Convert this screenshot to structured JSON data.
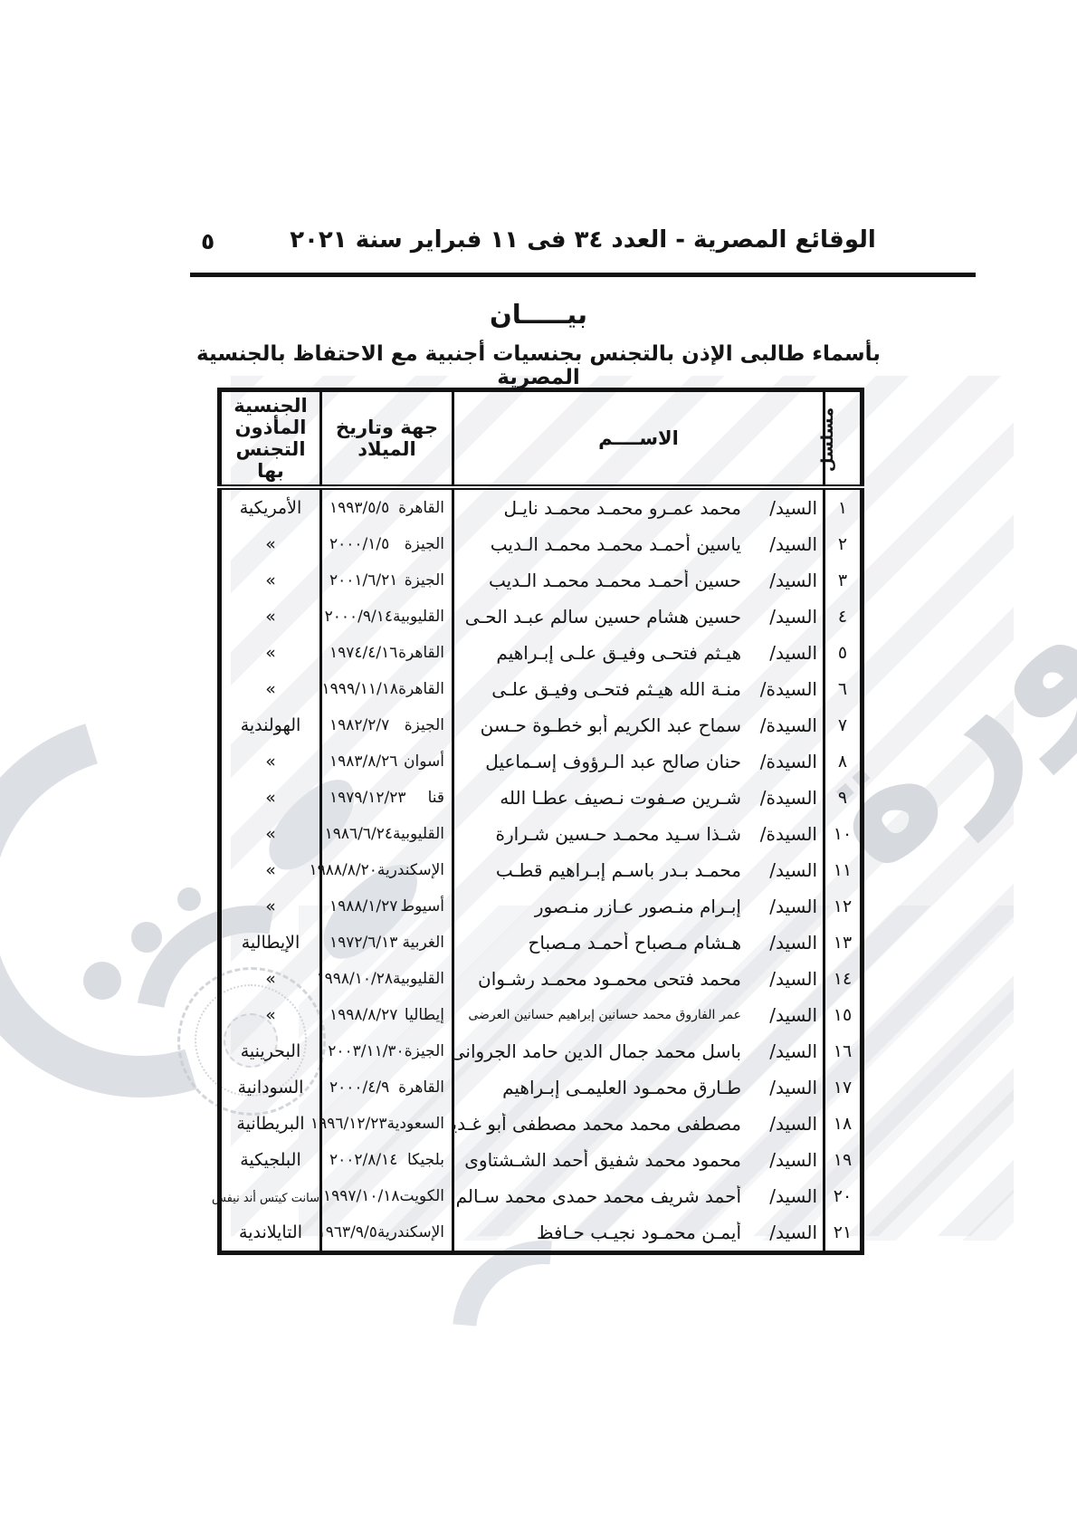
{
  "page": {
    "header_line": "الوقائع المصرية - العدد ٣٤ فى ١١ فبراير سنة ٢٠٢١",
    "page_number": "٥",
    "title": "بيـــــان",
    "subtitle": "بأسماء طالبى الإذن بالتجنس بجنسيات أجنبية مع الاحتفاظ بالجنسية المصرية"
  },
  "watermark": {
    "ghost_text": "صورة"
  },
  "table": {
    "headers": {
      "serial": "مسلسل",
      "name": "الاســــم",
      "birth": "جهة وتاريخ الميلاد",
      "nationality_line1": "الجنسية المأذون",
      "nationality_line2": "التجنس بها"
    },
    "rows": [
      {
        "serial": "١",
        "title": "السيد/",
        "name": "محمد عمـرو محمـد محمـد نايـل",
        "place": "القاهرة",
        "date": "١٩٩٣/٥/٥",
        "nationality": "الأمريكية"
      },
      {
        "serial": "٢",
        "title": "السيد/",
        "name": "ياسين أحمـد محمـد محمـد الـديب",
        "place": "الجيزة",
        "date": "٢٠٠٠/١/٥",
        "nationality": "»"
      },
      {
        "serial": "٣",
        "title": "السيد/",
        "name": "حسين أحمـد محمـد محمـد الـديب",
        "place": "الجيزة",
        "date": "٢٠٠١/٦/٢١",
        "nationality": "»"
      },
      {
        "serial": "٤",
        "title": "السيد/",
        "name": "حسين هشام حسين سالم عبـد الحـى",
        "place": "القليوبية",
        "date": "٢٠٠٠/٩/١٤",
        "nationality": "»"
      },
      {
        "serial": "٥",
        "title": "السيد/",
        "name": "هيـثم فتحـى وفيـق علـى إبـراهيم",
        "place": "القاهرة",
        "date": "١٩٧٤/٤/١٦",
        "nationality": "»"
      },
      {
        "serial": "٦",
        "title": "السيدة/",
        "name": "منـة الله هيـثم فتحـى وفيـق علـى",
        "place": "القاهرة",
        "date": "١٩٩٩/١١/١٨",
        "nationality": "»"
      },
      {
        "serial": "٧",
        "title": "السيدة/",
        "name": "سماح عبد الكريم أبو خطـوة حـسن",
        "place": "الجيزة",
        "date": "١٩٨٢/٢/٧",
        "nationality": "الهولندية"
      },
      {
        "serial": "٨",
        "title": "السيدة/",
        "name": "حنان صالح عبد الـرؤوف إسـماعيل",
        "place": "أسوان",
        "date": "١٩٨٣/٨/٢٦",
        "nationality": "»"
      },
      {
        "serial": "٩",
        "title": "السيدة/",
        "name": "شـرين صـفوت نـصيف عطـا الله",
        "place": "قنا",
        "date": "١٩٧٩/١٢/٢٣",
        "nationality": "»"
      },
      {
        "serial": "١٠",
        "title": "السيدة/",
        "name": "شـذا سـيد محمـد حـسين شـرارة",
        "place": "القليوبية",
        "date": "١٩٨٦/٦/٢٤",
        "nationality": "»"
      },
      {
        "serial": "١١",
        "title": "السيد/",
        "name": "محمـد بـدر باسـم إبـراهيم قطـب",
        "place": "الإسكندرية",
        "date": "١٩٨٨/٨/٢٠",
        "nationality": "»"
      },
      {
        "serial": "١٢",
        "title": "السيد/",
        "name": "إبـرام منـصور عـازر منـصور",
        "place": "أسيوط",
        "date": "١٩٨٨/١/٢٧",
        "nationality": "»"
      },
      {
        "serial": "١٣",
        "title": "السيد/",
        "name": "هـشام مـصباح أحمـد مـصباح",
        "place": "الغربية",
        "date": "١٩٧٢/٦/١٣",
        "nationality": "الإيطالية"
      },
      {
        "serial": "١٤",
        "title": "السيد/",
        "name": "محمد فتحى محمـود محمـد رشـوان",
        "place": "القليوبية",
        "date": "١٩٩٨/١٠/٢٨",
        "nationality": "»"
      },
      {
        "serial": "١٥",
        "title": "السيد/",
        "name": "عمر الفاروق محمد حسانين إبراهيم حسانين العرضى",
        "name_small": true,
        "place": "إيطاليا",
        "date": "١٩٩٨/٨/٢٧",
        "nationality": "»"
      },
      {
        "serial": "١٦",
        "title": "السيد/",
        "name": "باسل محمد جمال الدين حامد الجروانى",
        "place": "الجيزة",
        "date": "٢٠٠٣/١١/٣٠",
        "nationality": "البحرينية"
      },
      {
        "serial": "١٧",
        "title": "السيد/",
        "name": "طـارق محمـود العليمـى إبـراهيم",
        "place": "القاهرة",
        "date": "٢٠٠٠/٤/٩",
        "nationality": "السودانية"
      },
      {
        "serial": "١٨",
        "title": "السيد/",
        "name": "مصطفى محمد محمد مصطفى أبو غـدير",
        "place": "السعودية",
        "date": "١٩٩٦/١٢/٢٣",
        "nationality": "البريطانية"
      },
      {
        "serial": "١٩",
        "title": "السيد/",
        "name": "محمود محمد شفيق أحمد الشـشتاوى",
        "place": "بلجيكا",
        "date": "٢٠٠٢/٨/١٤",
        "nationality": "البلجيكية"
      },
      {
        "serial": "٢٠",
        "title": "السيد/",
        "name": "أحمد شريف محمد حمدى محمد سـالم",
        "place": "الكويت",
        "date": "١٩٩٧/١٠/١٨",
        "nationality": "سانت كيتس أند نيفس",
        "nationality_small": true
      },
      {
        "serial": "٢١",
        "title": "السيد/",
        "name": "أيمـن محمـود نجيـب حـافظ",
        "place": "الإسكندرية",
        "date": "١٩٦٣/٩/٥",
        "nationality": "التايلاندية"
      }
    ]
  }
}
